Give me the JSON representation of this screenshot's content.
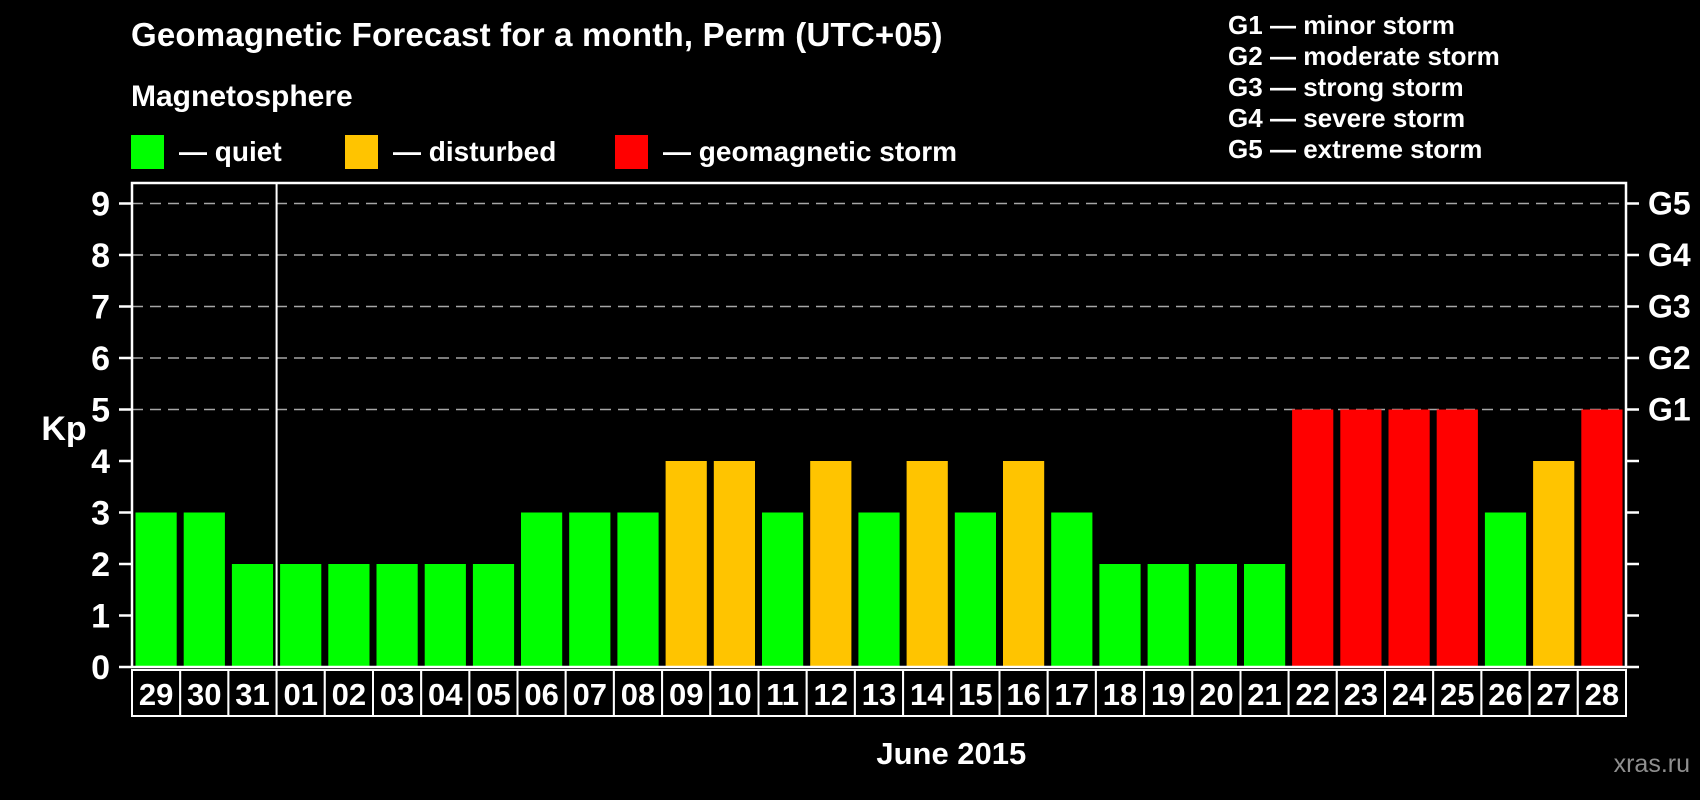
{
  "page": {
    "background": "#000000",
    "watermark": "xras.ru"
  },
  "header": {
    "title": "Geomagnetic Forecast for a month, Perm (UTC+05)",
    "subtitle": "Magnetosphere"
  },
  "legend": {
    "items": [
      {
        "key": "quiet",
        "label": "— quiet",
        "color": "#00ff00"
      },
      {
        "key": "disturbed",
        "label": "— disturbed",
        "color": "#ffc400"
      },
      {
        "key": "storm",
        "label": "— geomagnetic storm",
        "color": "#ff0000"
      }
    ]
  },
  "storm_scale": [
    {
      "code": "G1",
      "label": "— minor storm"
    },
    {
      "code": "G2",
      "label": "— moderate storm"
    },
    {
      "code": "G3",
      "label": "— strong storm"
    },
    {
      "code": "G4",
      "label": "— severe storm"
    },
    {
      "code": "G5",
      "label": "— extreme storm"
    }
  ],
  "chart_data": {
    "type": "bar",
    "title": "Geomagnetic Forecast for a month, Perm (UTC+05)",
    "xlabel": "June 2015",
    "ylabel": "Kp",
    "ylim": [
      0,
      9.5
    ],
    "yticks": [
      0,
      1,
      2,
      3,
      4,
      5,
      6,
      7,
      8,
      9
    ],
    "gridlines": [
      5,
      6,
      7,
      8,
      9
    ],
    "grid_style": "dashed gray horizontal lines at storm thresholds",
    "legend_position": "top-left",
    "right_axis": [
      {
        "kp": 5,
        "label": "G1"
      },
      {
        "kp": 6,
        "label": "G2"
      },
      {
        "kp": 7,
        "label": "G3"
      },
      {
        "kp": 8,
        "label": "G4"
      },
      {
        "kp": 9,
        "label": "G5"
      }
    ],
    "month_separator_after_category": "31",
    "categories": [
      "29",
      "30",
      "31",
      "01",
      "02",
      "03",
      "04",
      "05",
      "06",
      "07",
      "08",
      "09",
      "10",
      "11",
      "12",
      "13",
      "14",
      "15",
      "16",
      "17",
      "18",
      "19",
      "20",
      "21",
      "22",
      "23",
      "24",
      "25",
      "26",
      "27",
      "28"
    ],
    "values": [
      3,
      3,
      2,
      2,
      2,
      2,
      2,
      2,
      3,
      3,
      3,
      4,
      4,
      3,
      4,
      3,
      4,
      3,
      4,
      3,
      2,
      2,
      2,
      2,
      5,
      5,
      5,
      5,
      3,
      4,
      5
    ],
    "statuses": [
      "quiet",
      "quiet",
      "quiet",
      "quiet",
      "quiet",
      "quiet",
      "quiet",
      "quiet",
      "quiet",
      "quiet",
      "quiet",
      "disturbed",
      "disturbed",
      "quiet",
      "disturbed",
      "quiet",
      "disturbed",
      "quiet",
      "disturbed",
      "quiet",
      "quiet",
      "quiet",
      "quiet",
      "quiet",
      "storm",
      "storm",
      "storm",
      "storm",
      "quiet",
      "disturbed",
      "storm"
    ],
    "colors": {
      "quiet": "#00ff00",
      "disturbed": "#ffc400",
      "storm": "#ff0000"
    }
  }
}
